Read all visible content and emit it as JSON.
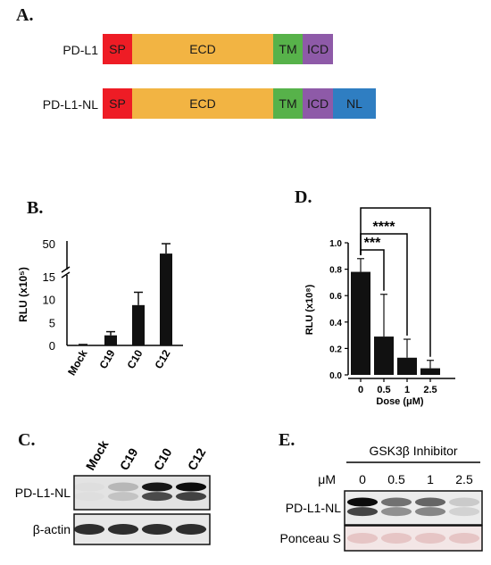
{
  "panels": {
    "A": "A.",
    "B": "B.",
    "C": "C.",
    "D": "D.",
    "E": "E."
  },
  "panel_a": {
    "constructs": [
      {
        "name": "PD-L1",
        "domains": [
          {
            "label": "SP",
            "color": "#ee1c25"
          },
          {
            "label": "ECD",
            "color": "#f2b443"
          },
          {
            "label": "TM",
            "color": "#57b24a"
          },
          {
            "label": "ICD",
            "color": "#8e5aa8"
          }
        ]
      },
      {
        "name": "PD-L1-NL",
        "domains": [
          {
            "label": "SP",
            "color": "#ee1c25"
          },
          {
            "label": "ECD",
            "color": "#f2b443"
          },
          {
            "label": "TM",
            "color": "#57b24a"
          },
          {
            "label": "ICD",
            "color": "#8e5aa8"
          },
          {
            "label": "NL",
            "color": "#2f7ec2"
          }
        ]
      }
    ]
  },
  "chart_data": [
    {
      "panel": "B",
      "type": "bar",
      "ylabel": "RLU (x10⁵)",
      "categories": [
        "Mock",
        "C19",
        "C10",
        "C12"
      ],
      "values": [
        0.1,
        2.2,
        8.8,
        48.5
      ],
      "errors": [
        0.1,
        0.8,
        2.8,
        1.5
      ],
      "y_ticks": [
        "0",
        "5",
        "10",
        "15",
        "50"
      ],
      "axis_break": true
    },
    {
      "panel": "D",
      "type": "bar",
      "xlabel": "Dose (μM)",
      "ylabel": "RLU (x10⁸)",
      "categories": [
        "0",
        "0.5",
        "1",
        "2.5"
      ],
      "values": [
        0.78,
        0.29,
        0.13,
        0.05
      ],
      "errors": [
        0.1,
        0.32,
        0.14,
        0.06
      ],
      "ylim": [
        0,
        1.0
      ],
      "y_ticks": [
        "0.0",
        "0.2",
        "0.4",
        "0.6",
        "0.8",
        "1.0"
      ],
      "significance": [
        {
          "from": "0",
          "to": "0.5",
          "label": "***"
        },
        {
          "from": "0",
          "to": "1",
          "label": "****"
        },
        {
          "from": "0",
          "to": "2.5",
          "label": "****"
        }
      ]
    }
  ],
  "panel_c": {
    "lanes": [
      "Mock",
      "C19",
      "C10",
      "C12"
    ],
    "rows": [
      {
        "label": "PD-L1-NL",
        "intensity": [
          0.0,
          0.2,
          0.95,
          1.0
        ]
      },
      {
        "label": "β-actin",
        "intensity": [
          0.9,
          0.9,
          0.9,
          0.9
        ]
      }
    ]
  },
  "panel_e": {
    "header": "GSK3β Inhibitor",
    "unit": "μM",
    "lanes": [
      "0",
      "0.5",
      "1",
      "2.5"
    ],
    "rows": [
      {
        "label": "PD-L1-NL",
        "intensity": [
          1.0,
          0.55,
          0.6,
          0.15
        ]
      },
      {
        "label": "Ponceau S",
        "intensity": [
          0.5,
          0.5,
          0.5,
          0.5
        ]
      }
    ]
  }
}
